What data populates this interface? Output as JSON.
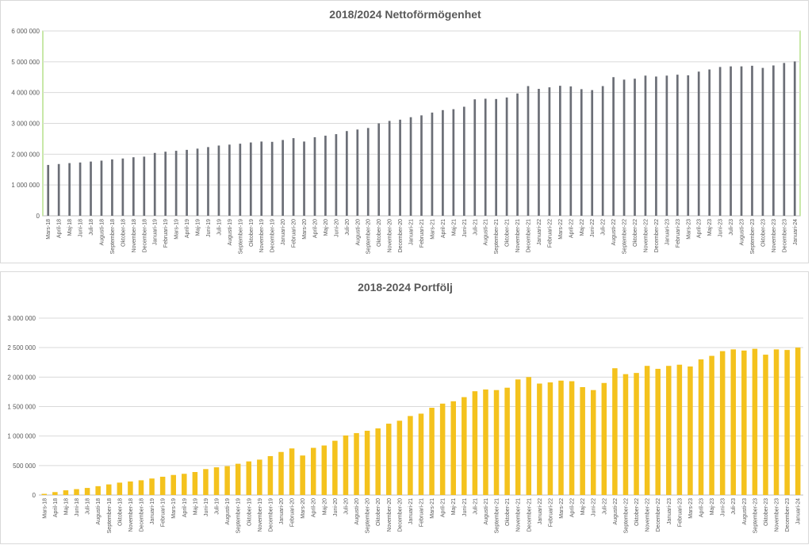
{
  "chart_data": [
    {
      "type": "bar",
      "title": "2018/2024 Nettoförmögenhet",
      "xlabel": "",
      "ylabel": "",
      "ylim": [
        0,
        6000000
      ],
      "yticks": [
        "0",
        "1 000 000",
        "2 000 000",
        "3 000 000",
        "4 000 000",
        "5 000 000",
        "6 000 000"
      ],
      "color": "#6b6e76",
      "border_color": "#92d050",
      "grid": true,
      "categories": [
        "Mars-18",
        "April-18",
        "Maj-18",
        "Juni-18",
        "Juli-18",
        "Augusti-18",
        "September-18",
        "Oktober-18",
        "November-18",
        "December-18",
        "Januari-19",
        "Februari-19",
        "Mars-19",
        "April-19",
        "Maj-19",
        "Juni-19",
        "Juli-19",
        "Augusti-19",
        "September-19",
        "Oktober-19",
        "November-19",
        "December-19",
        "Januari-20",
        "Februari-20",
        "Mars-20",
        "April-20",
        "Maj-20",
        "Juni-20",
        "Juli-20",
        "Augusti-20",
        "September-20",
        "Oktober-20",
        "November-20",
        "December-20",
        "Januari-21",
        "Februari-21",
        "Mars-21",
        "April-21",
        "Maj-21",
        "Juni-21",
        "Juli-21",
        "Augusti-21",
        "September-21",
        "Oktober-21",
        "November-21",
        "December-21",
        "Januari-22",
        "Februari-22",
        "Mars-22",
        "April-22",
        "Maj-22",
        "Juni-22",
        "Juli-22",
        "Augusti-22",
        "September-22",
        "Oktober-22",
        "November-22",
        "December-22",
        "Januari-23",
        "Februari-23",
        "Mars-23",
        "April-23",
        "Maj-23",
        "Juni-23",
        "Juli-23",
        "Augusti-23",
        "September-23",
        "Oktober-23",
        "November-23",
        "December-23",
        "Januari-24"
      ],
      "values": [
        1650000,
        1680000,
        1710000,
        1730000,
        1760000,
        1790000,
        1830000,
        1860000,
        1900000,
        1920000,
        2040000,
        2080000,
        2110000,
        2140000,
        2180000,
        2230000,
        2280000,
        2310000,
        2340000,
        2380000,
        2410000,
        2400000,
        2460000,
        2520000,
        2410000,
        2550000,
        2600000,
        2650000,
        2750000,
        2800000,
        2850000,
        3000000,
        3080000,
        3120000,
        3200000,
        3260000,
        3350000,
        3430000,
        3460000,
        3540000,
        3780000,
        3800000,
        3790000,
        3840000,
        3970000,
        4210000,
        4120000,
        4170000,
        4220000,
        4200000,
        4110000,
        4080000,
        4210000,
        4500000,
        4420000,
        4450000,
        4550000,
        4520000,
        4550000,
        4580000,
        4560000,
        4680000,
        4750000,
        4830000,
        4850000,
        4850000,
        4870000,
        4800000,
        4880000,
        4960000,
        5010000
      ]
    },
    {
      "type": "bar",
      "title": "2018-2024 Portfölj",
      "xlabel": "",
      "ylabel": "",
      "ylim": [
        0,
        3000000
      ],
      "yticks": [
        "0",
        "500 000",
        "1 000 000",
        "1 500 000",
        "2 000 000",
        "2 500 000",
        "3 000 000"
      ],
      "color": "#f4c21d",
      "grid": true,
      "categories": [
        "Mars-18",
        "April-18",
        "Maj-18",
        "Juni-18",
        "Juli-18",
        "Augusti-18",
        "September-18",
        "Oktober-18",
        "November-18",
        "December-18",
        "Januari-19",
        "Februari-19",
        "Mars-19",
        "April-19",
        "Maj-19",
        "Juni-19",
        "Juli-19",
        "Augusti-19",
        "September-19",
        "Oktober-19",
        "November-19",
        "December-19",
        "Januari-20",
        "Februari-20",
        "Mars-20",
        "April-20",
        "Maj-20",
        "Juni-20",
        "Juli-20",
        "Augusti-20",
        "September-20",
        "Oktober-20",
        "November-20",
        "December-20",
        "Januari-21",
        "Februari-21",
        "Mars-21",
        "April-21",
        "Maj-21",
        "Juni-21",
        "Juli-21",
        "Augusti-21",
        "September-21",
        "Oktober-21",
        "November-21",
        "December-21",
        "Januari-22",
        "Februari-22",
        "Mars-22",
        "April-22",
        "Maj-22",
        "Juni-22",
        "Juli-22",
        "Augusti-22",
        "September-22",
        "Oktober-22",
        "November-22",
        "December-22",
        "Januari-23",
        "Februari-23",
        "Mars-23",
        "April-23",
        "Maj-23",
        "Juni-23",
        "Juli-23",
        "Augusti-23",
        "September-23",
        "Oktober-23",
        "November-23",
        "December-23",
        "Januari-24"
      ],
      "values": [
        20000,
        50000,
        80000,
        100000,
        120000,
        150000,
        180000,
        210000,
        230000,
        250000,
        280000,
        310000,
        340000,
        360000,
        390000,
        440000,
        470000,
        490000,
        530000,
        570000,
        600000,
        660000,
        730000,
        790000,
        670000,
        800000,
        840000,
        920000,
        1010000,
        1050000,
        1090000,
        1130000,
        1210000,
        1260000,
        1340000,
        1380000,
        1480000,
        1550000,
        1590000,
        1660000,
        1760000,
        1790000,
        1780000,
        1820000,
        1960000,
        2000000,
        1890000,
        1910000,
        1940000,
        1930000,
        1830000,
        1780000,
        1900000,
        2150000,
        2050000,
        2070000,
        2190000,
        2140000,
        2190000,
        2210000,
        2180000,
        2300000,
        2360000,
        2440000,
        2470000,
        2450000,
        2480000,
        2380000,
        2470000,
        2460000,
        2500000
      ]
    }
  ]
}
